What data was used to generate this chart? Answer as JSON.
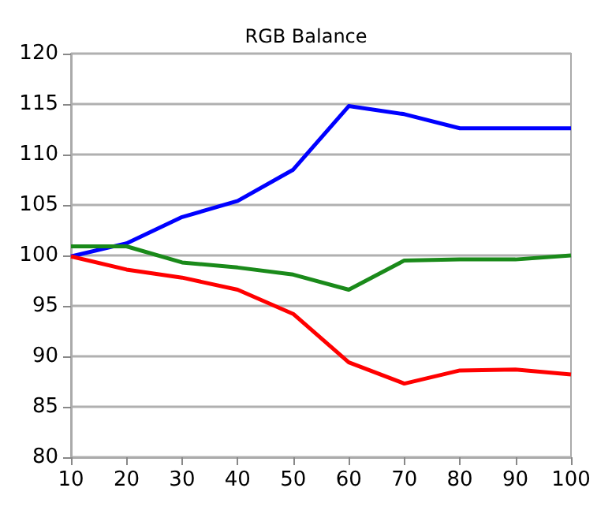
{
  "chart_data": {
    "type": "line",
    "title": "RGB Balance",
    "x": [
      10,
      20,
      30,
      40,
      50,
      60,
      70,
      80,
      90,
      100
    ],
    "series": [
      {
        "color": "#0000ff",
        "values": [
          99.9,
          101.2,
          103.8,
          105.4,
          108.5,
          114.8,
          114.0,
          112.6,
          112.6,
          112.6
        ]
      },
      {
        "color": "#1a8a1a",
        "values": [
          100.9,
          100.9,
          99.3,
          98.8,
          98.1,
          96.6,
          99.5,
          99.6,
          99.6,
          100.0
        ]
      },
      {
        "color": "#ff0000",
        "values": [
          99.9,
          98.6,
          97.8,
          96.6,
          94.2,
          89.4,
          87.3,
          88.6,
          88.7,
          88.2
        ]
      }
    ],
    "xlim": [
      10,
      100
    ],
    "xticks": [
      10,
      20,
      30,
      40,
      50,
      60,
      70,
      80,
      90,
      100
    ],
    "ylim": [
      80,
      120
    ],
    "yticks": [
      80,
      85,
      90,
      95,
      100,
      105,
      110,
      115,
      120
    ],
    "grid": "y",
    "marker": "none",
    "line_style": "solid"
  }
}
